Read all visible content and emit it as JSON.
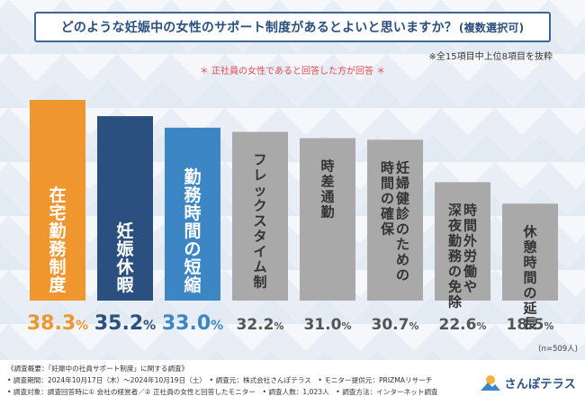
{
  "title": {
    "main": "どのような妊娠中の女性のサポート制度があるとよいと思いますか？",
    "paren": "(複数選択可)"
  },
  "note_top": "※全15項目中上位8項目を抜粋",
  "note_red": "＊ 正社員の女性であると回答した方が回答 ＊",
  "n_label": "(n=509人)",
  "chart_data": {
    "type": "bar",
    "title": "どのような妊娠中の女性のサポート制度があるとよいと思いますか？(複数選択可)",
    "categories": [
      "在宅勤務制度",
      "妊娠休暇",
      "勤務時間の短縮",
      "フレックスタイム制",
      "時差通勤",
      "妊婦健診のための時間の確保",
      "時間外労働や深夜勤務の免除",
      "休憩時間の延長"
    ],
    "category_columns": [
      [
        "在宅勤務制度"
      ],
      [
        "妊娠休暇"
      ],
      [
        "勤務時間の短縮"
      ],
      [
        "フレックスタイム制"
      ],
      [
        "時差通勤"
      ],
      [
        "妊婦健診のための",
        "時間の確保"
      ],
      [
        "時間外労働や",
        "深夜勤務の免除"
      ],
      [
        "休憩時間の延長"
      ]
    ],
    "values": [
      38.3,
      35.2,
      33.0,
      32.2,
      31.0,
      30.7,
      22.6,
      18.5
    ],
    "value_labels": [
      {
        "num": "38.3",
        "unit": "%"
      },
      {
        "num": "35.2",
        "unit": "%"
      },
      {
        "num": "33.0",
        "unit": "%"
      },
      {
        "num": "32.2",
        "unit": "%"
      },
      {
        "num": "31.0",
        "unit": "%"
      },
      {
        "num": "30.7",
        "unit": "%"
      },
      {
        "num": "22.6",
        "unit": "%"
      },
      {
        "num": "18.5",
        "unit": "%"
      }
    ],
    "unit": "%",
    "bar_colors": [
      "#f0962f",
      "#2b4f7e",
      "#3c86c6",
      "#a9a9a9",
      "#a9a9a9",
      "#a9a9a9",
      "#a9a9a9",
      "#a9a9a9"
    ],
    "value_colors": [
      "#f0962f",
      "#2b4f7e",
      "#3c86c6",
      "#555555",
      "#555555",
      "#555555",
      "#555555",
      "#555555"
    ],
    "ylim": [
      0,
      38.3
    ],
    "grid": false,
    "legend": "none"
  },
  "footer": {
    "lines": [
      "《調査概要：「妊娠中の社員サポート制度」に関する調査》",
      "• 調査期間：2024年10月17日（木）～2024年10月19日（土）　• 調査元：株式会社さんぽテラス　• モニター提供元：PRIZMAリサーチ",
      "• 調査対象：調査回答時に① 会社の経営者／② 正社員の女性と回答したモニター　• 調査人数：1,023人　• 調査方法：インターネット調査"
    ],
    "logo_text": "さんぽテラス"
  }
}
